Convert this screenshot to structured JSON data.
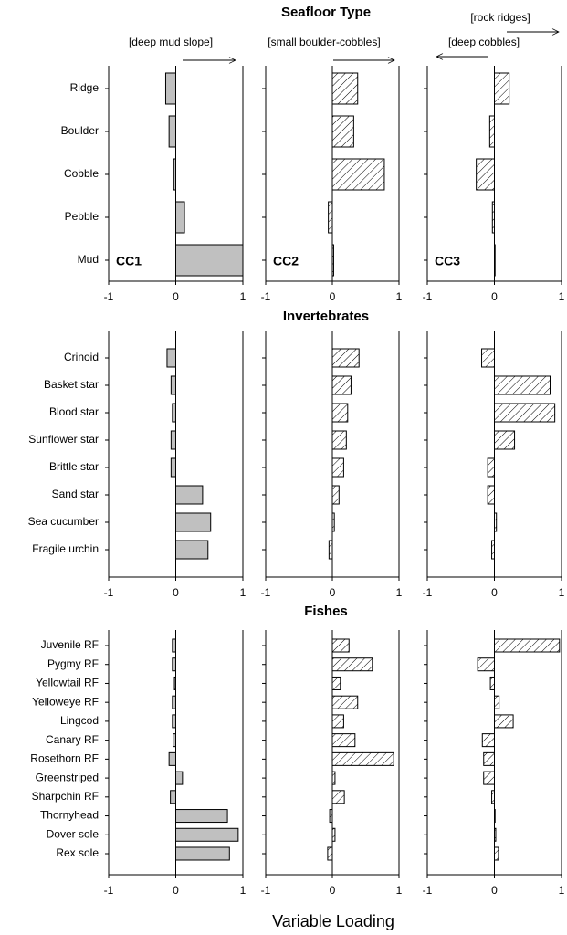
{
  "chart_data": [
    {
      "type": "barh",
      "categories": [
        "Ridge",
        "Boulder",
        "Cobble",
        "Pebble",
        "Mud"
      ],
      "values": [
        -0.15,
        -0.1,
        -0.03,
        0.13,
        1.0
      ],
      "color": "#c0c0c0",
      "xlim": [
        -1,
        1
      ],
      "xticks": [
        -1,
        0,
        1
      ],
      "panel_label": "CC1",
      "annotations": [
        "[deep mud slope]"
      ]
    },
    {
      "type": "barh",
      "title": "Seafloor Type",
      "values": [
        0.38,
        0.32,
        0.78,
        -0.06,
        0.02
      ],
      "color": "#c0c0c0",
      "hatch": true,
      "xlim": [
        -1,
        1
      ],
      "xticks": [
        -1,
        0,
        1
      ],
      "panel_label": "CC2",
      "annotations": [
        "[small boulder-cobbles]"
      ]
    },
    {
      "type": "barh",
      "values": [
        0.22,
        -0.07,
        -0.27,
        -0.03,
        0.01
      ],
      "color": "#c0c0c0",
      "hatch": true,
      "xlim": [
        -1,
        1
      ],
      "xticks": [
        -1,
        0,
        1
      ],
      "panel_label": "CC3",
      "annotations": [
        "[rock ridges]",
        "[deep cobbles]"
      ]
    },
    {
      "type": "barh",
      "categories": [
        "Crinoid",
        "Basket star",
        "Blood star",
        "Sunflower star",
        "Brittle star",
        "Sand star",
        "Sea cucumber",
        "Fragile urchin"
      ],
      "values": [
        -0.13,
        -0.07,
        -0.05,
        -0.07,
        -0.07,
        0.4,
        0.52,
        0.48
      ],
      "color": "#c0c0c0",
      "xlim": [
        -1,
        1
      ],
      "xticks": [
        -1,
        0,
        1
      ]
    },
    {
      "type": "barh",
      "title": "Invertebrates",
      "values": [
        0.4,
        0.28,
        0.23,
        0.21,
        0.17,
        0.1,
        0.03,
        -0.05
      ],
      "color": "#c0c0c0",
      "hatch": true,
      "xlim": [
        -1,
        1
      ],
      "xticks": [
        -1,
        0,
        1
      ]
    },
    {
      "type": "barh",
      "values": [
        -0.19,
        0.83,
        0.9,
        0.3,
        -0.1,
        -0.1,
        0.03,
        -0.04
      ],
      "color": "#c0c0c0",
      "hatch": true,
      "xlim": [
        -1,
        1
      ],
      "xticks": [
        -1,
        0,
        1
      ]
    },
    {
      "type": "barh",
      "categories": [
        "Juvenile RF",
        "Pygmy RF",
        "Yellowtail RF",
        "Yelloweye RF",
        "Lingcod",
        "Canary RF",
        "Rosethorn RF",
        "Greenstriped",
        "Sharpchin RF",
        "Thornyhead",
        "Dover sole",
        "Rex sole"
      ],
      "values": [
        -0.05,
        -0.05,
        -0.02,
        -0.05,
        -0.05,
        -0.04,
        -0.1,
        0.1,
        -0.08,
        0.77,
        0.93,
        0.8
      ],
      "color": "#c0c0c0",
      "xlim": [
        -1,
        1
      ],
      "xticks": [
        -1,
        0,
        1
      ]
    },
    {
      "type": "barh",
      "title": "Fishes",
      "xlabel": "Variable Loading",
      "values": [
        0.25,
        0.6,
        0.12,
        0.38,
        0.17,
        0.34,
        0.92,
        0.04,
        0.18,
        -0.04,
        0.04,
        -0.07
      ],
      "color": "#c0c0c0",
      "hatch": true,
      "xlim": [
        -1,
        1
      ],
      "xticks": [
        -1,
        0,
        1
      ]
    },
    {
      "type": "barh",
      "values": [
        0.97,
        -0.25,
        -0.06,
        0.07,
        0.28,
        -0.18,
        -0.16,
        -0.16,
        -0.04,
        0.01,
        0.02,
        0.06
      ],
      "color": "#c0c0c0",
      "hatch": true,
      "xlim": [
        -1,
        1
      ],
      "xticks": [
        -1,
        0,
        1
      ]
    }
  ]
}
